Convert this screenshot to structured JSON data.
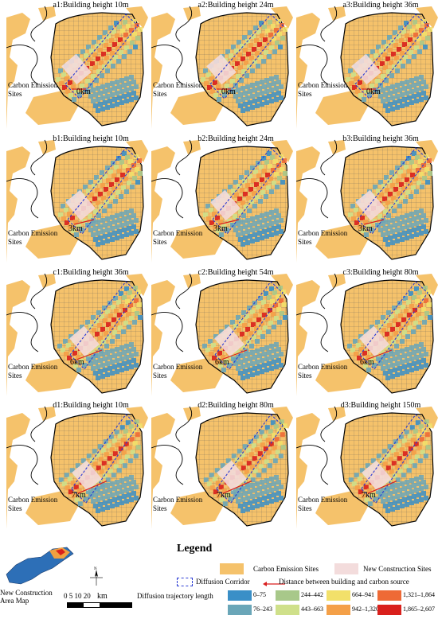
{
  "panels": [
    {
      "id": "a1",
      "title": "a1:Building height 10m",
      "distance": "0km",
      "site_label": "Carbon Emission Sites"
    },
    {
      "id": "a2",
      "title": "a2:Building height 24m",
      "distance": "0km",
      "site_label": "Carbon Emission Sites"
    },
    {
      "id": "a3",
      "title": "a3:Building height 36m",
      "distance": "0km",
      "site_label": "Carbon Emission Sites"
    },
    {
      "id": "b1",
      "title": "b1:Building height 10m",
      "distance": "3km",
      "site_label": "Carbon Emission Sites"
    },
    {
      "id": "b2",
      "title": "b2:Building height 24m",
      "distance": "3km",
      "site_label": "Carbon Emission Sites"
    },
    {
      "id": "b3",
      "title": "b3:Building height 36m",
      "distance": "3km",
      "site_label": "Carbon Emission Sites"
    },
    {
      "id": "c1",
      "title": "c1:Building height 36m",
      "distance": "6km",
      "site_label": "Carbon Emission Sites"
    },
    {
      "id": "c2",
      "title": "c2:Building height 54m",
      "distance": "6km",
      "site_label": "Carbon Emission Sites"
    },
    {
      "id": "c3",
      "title": "c3:Building height 80m",
      "distance": "6km",
      "site_label": "Carbon Emission Sites"
    },
    {
      "id": "d1",
      "title": "d1:Building height 10m",
      "distance": "7km",
      "site_label": "Carbon Emission Sites"
    },
    {
      "id": "d2",
      "title": "d2:Building height 80m",
      "distance": "7km",
      "site_label": "Carbon Emission Sites"
    },
    {
      "id": "d3",
      "title": "d3:Building height 150m",
      "distance": "7km",
      "site_label": "Carbon Emission Sites"
    }
  ],
  "legend": {
    "title": "Legend",
    "carbon_sites": "Carbon Emission Sites",
    "construction_sites": "New Construction Sites",
    "diffusion_corridor": "Diffusion Corridor",
    "distance": "Distance between building and carbon source",
    "trajectory_title": "Diffusion trajectory length",
    "classes": [
      {
        "label": "0–75",
        "color": "#3a8fc7"
      },
      {
        "label": "76–243",
        "color": "#6aa6b8"
      },
      {
        "label": "244–442",
        "color": "#a8c88a"
      },
      {
        "label": "443–663",
        "color": "#cfe08a"
      },
      {
        "label": "664–941",
        "color": "#f2e06a"
      },
      {
        "label": "942–1,320",
        "color": "#f4a048"
      },
      {
        "label": "1,321–1,864",
        "color": "#ee6a36"
      },
      {
        "label": "1,865–2,607",
        "color": "#d9201c"
      }
    ],
    "colors": {
      "carbon": "#f5c26b",
      "construction": "#f3dcdc",
      "corridor": "#2a3bd4",
      "distance": "#d91e1e"
    }
  },
  "inset": {
    "label": "New Construction Area Map",
    "north": "N",
    "scale_numbers": "0   5  10      20",
    "scale_unit": "km"
  }
}
